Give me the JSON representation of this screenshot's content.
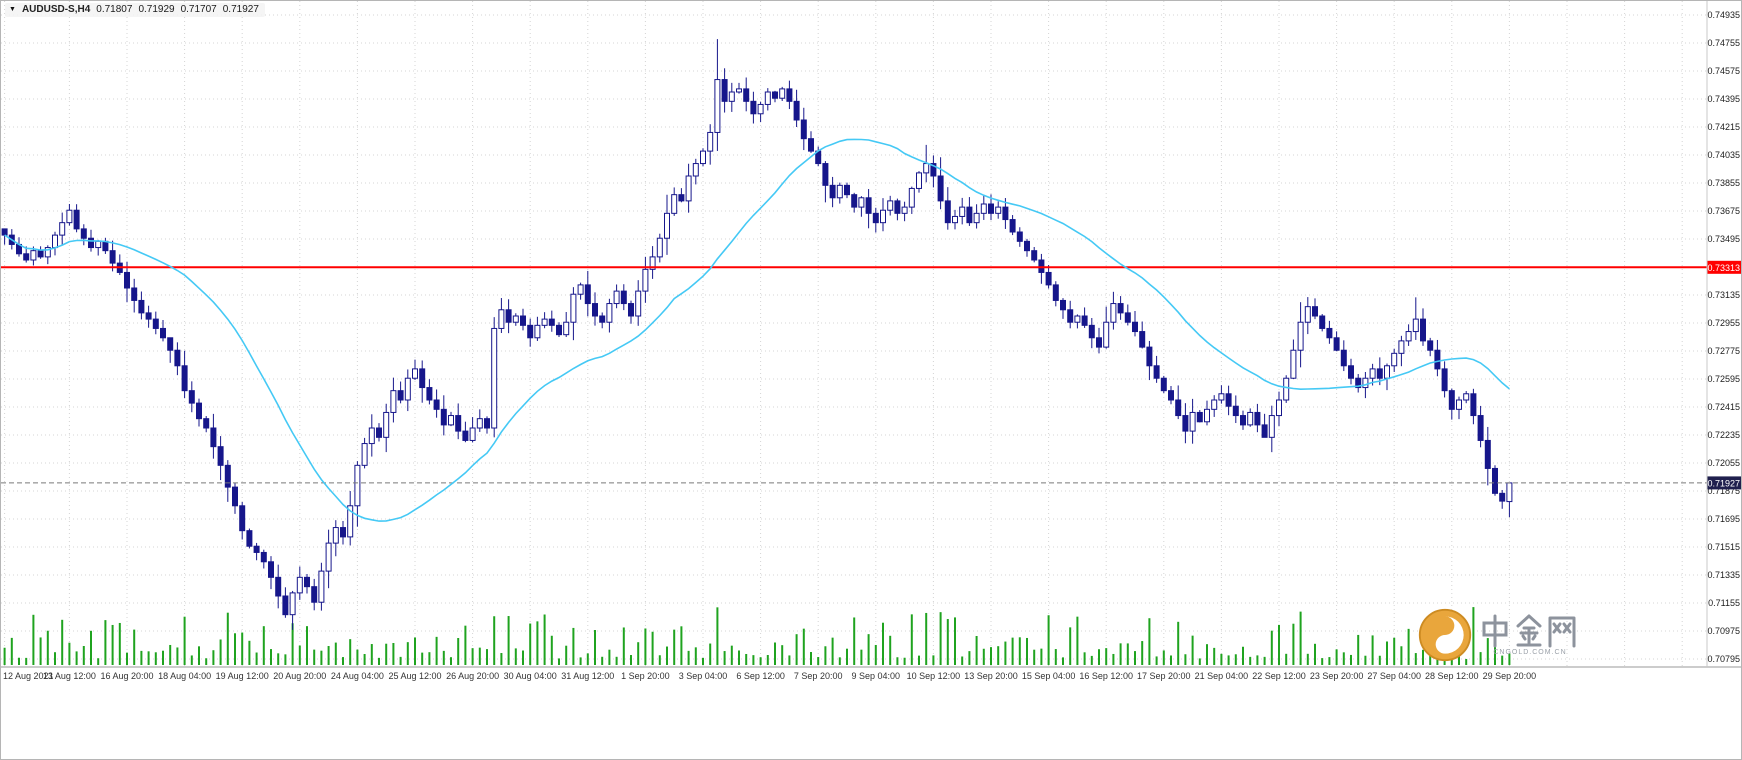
{
  "header": {
    "dropdown_icon": "▼",
    "symbol": "AUDUSD-S,H4",
    "open": "0.71807",
    "high": "0.71929",
    "low": "0.71707",
    "close": "0.71927"
  },
  "watermark": {
    "brand": "中金网",
    "subtext": "CNGOLD.COM.CN"
  },
  "chart_data": {
    "type": "candlestick",
    "symbol": "AUDUSD-S",
    "timeframe": "H4",
    "title": "AUDUSD-S,H4 0.71807 0.71929 0.71707 0.71927",
    "bar_count": 210,
    "y_axis": {
      "min": 0.70795,
      "max": 0.74935,
      "tick_step": 0.0018,
      "decimals": 5
    },
    "x_axis": {
      "ticks": [
        {
          "i": 0,
          "label": "12 Aug 2021"
        },
        {
          "i": 9,
          "label": "13 Aug 12:00"
        },
        {
          "i": 17,
          "label": "16 Aug 20:00"
        },
        {
          "i": 25,
          "label": "18 Aug 04:00"
        },
        {
          "i": 33,
          "label": "19 Aug 12:00"
        },
        {
          "i": 41,
          "label": "20 Aug 20:00"
        },
        {
          "i": 49,
          "label": "24 Aug 04:00"
        },
        {
          "i": 57,
          "label": "25 Aug 12:00"
        },
        {
          "i": 65,
          "label": "26 Aug 20:00"
        },
        {
          "i": 73,
          "label": "30 Aug 04:00"
        },
        {
          "i": 81,
          "label": "31 Aug 12:00"
        },
        {
          "i": 89,
          "label": "1 Sep 20:00"
        },
        {
          "i": 97,
          "label": "3 Sep 04:00"
        },
        {
          "i": 105,
          "label": "6 Sep 12:00"
        },
        {
          "i": 113,
          "label": "7 Sep 20:00"
        },
        {
          "i": 121,
          "label": "9 Sep 04:00"
        },
        {
          "i": 129,
          "label": "10 Sep 12:00"
        },
        {
          "i": 137,
          "label": "13 Sep 20:00"
        },
        {
          "i": 145,
          "label": "15 Sep 04:00"
        },
        {
          "i": 153,
          "label": "16 Sep 12:00"
        },
        {
          "i": 161,
          "label": "17 Sep 20:00"
        },
        {
          "i": 169,
          "label": "21 Sep 04:00"
        },
        {
          "i": 177,
          "label": "22 Sep 12:00"
        },
        {
          "i": 185,
          "label": "23 Sep 20:00"
        },
        {
          "i": 193,
          "label": "27 Sep 04:00"
        },
        {
          "i": 201,
          "label": "28 Sep 12:00"
        },
        {
          "i": 209,
          "label": "29 Sep 20:00"
        }
      ]
    },
    "closes": [
      0.7352,
      0.7346,
      0.734,
      0.7336,
      0.7342,
      0.7338,
      0.7344,
      0.7352,
      0.736,
      0.7368,
      0.7356,
      0.735,
      0.7344,
      0.7348,
      0.7342,
      0.7334,
      0.7328,
      0.7318,
      0.731,
      0.7302,
      0.7298,
      0.7292,
      0.7286,
      0.7278,
      0.7268,
      0.7252,
      0.7244,
      0.7234,
      0.7228,
      0.7216,
      0.7204,
      0.719,
      0.7178,
      0.7162,
      0.7152,
      0.7148,
      0.7142,
      0.7132,
      0.712,
      0.7108,
      0.7122,
      0.7132,
      0.7126,
      0.7116,
      0.7136,
      0.7154,
      0.7164,
      0.7158,
      0.7178,
      0.7204,
      0.7218,
      0.7228,
      0.7222,
      0.7238,
      0.7252,
      0.7246,
      0.726,
      0.7266,
      0.7254,
      0.7246,
      0.724,
      0.723,
      0.7236,
      0.7226,
      0.722,
      0.7228,
      0.7234,
      0.7228,
      0.7292,
      0.7304,
      0.7296,
      0.73,
      0.7294,
      0.7286,
      0.7294,
      0.7298,
      0.7294,
      0.7288,
      0.7296,
      0.7314,
      0.732,
      0.7308,
      0.73,
      0.7296,
      0.7308,
      0.7316,
      0.7308,
      0.73,
      0.7316,
      0.733,
      0.7338,
      0.735,
      0.7366,
      0.7378,
      0.7374,
      0.739,
      0.7398,
      0.7406,
      0.7418,
      0.7452,
      0.7438,
      0.7444,
      0.7446,
      0.7438,
      0.743,
      0.7436,
      0.7444,
      0.744,
      0.7446,
      0.7438,
      0.7426,
      0.7414,
      0.7406,
      0.7398,
      0.7384,
      0.7376,
      0.7384,
      0.7378,
      0.737,
      0.7376,
      0.7366,
      0.736,
      0.7368,
      0.7374,
      0.7366,
      0.737,
      0.7382,
      0.7392,
      0.7398,
      0.739,
      0.7374,
      0.736,
      0.7364,
      0.737,
      0.736,
      0.7366,
      0.7372,
      0.7366,
      0.737,
      0.7362,
      0.7354,
      0.7348,
      0.7342,
      0.7336,
      0.7328,
      0.732,
      0.731,
      0.7304,
      0.7296,
      0.73,
      0.7294,
      0.7286,
      0.728,
      0.7296,
      0.7308,
      0.7302,
      0.7296,
      0.729,
      0.728,
      0.7268,
      0.726,
      0.7252,
      0.7246,
      0.7236,
      0.7226,
      0.7238,
      0.7232,
      0.724,
      0.7246,
      0.725,
      0.7242,
      0.7236,
      0.723,
      0.7238,
      0.723,
      0.7222,
      0.7236,
      0.7246,
      0.726,
      0.7278,
      0.7296,
      0.7306,
      0.73,
      0.7292,
      0.7286,
      0.7278,
      0.7268,
      0.726,
      0.7254,
      0.726,
      0.7266,
      0.726,
      0.7268,
      0.7276,
      0.7284,
      0.729,
      0.7298,
      0.7284,
      0.7278,
      0.7266,
      0.7252,
      0.724,
      0.7246,
      0.725,
      0.7236,
      0.722,
      0.7202,
      0.7186,
      0.7181,
      0.71927
    ],
    "wick_overrides": {
      "9": {
        "h": 0.7372
      },
      "39": {
        "l": 0.7106
      },
      "68": {
        "l": 0.7222
      },
      "99": {
        "h": 0.7478
      },
      "128": {
        "h": 0.741
      },
      "152": {
        "l": 0.7276
      },
      "196": {
        "h": 0.7312
      }
    },
    "last_candle": {
      "open": 0.71807,
      "high": 0.71929,
      "low": 0.71707,
      "close": 0.71927
    },
    "ma": {
      "period": 26,
      "color": "#45c9f5"
    },
    "hlines": [
      {
        "price": 0.73313,
        "label": "0.73313",
        "color": "#ff0000",
        "badge_bg": "#ff0000",
        "width": 2,
        "dashed": false
      },
      {
        "price": 0.71927,
        "label": "0.71927",
        "color": "#7a7a7a",
        "badge_bg": "#20204e",
        "width": 1,
        "dashed": true
      }
    ],
    "colors": {
      "background": "#ffffff",
      "grid": "#d4d4d4",
      "candle": "#16168b",
      "bull_fill": "#ffffff",
      "bear_fill": "#16168b",
      "volume": "#1fa31f",
      "axis_text": "#1c1c1c",
      "date_text": "#333333",
      "frame": "#9a9a9a",
      "badge_text": "#ffffff"
    },
    "seed": 7
  }
}
